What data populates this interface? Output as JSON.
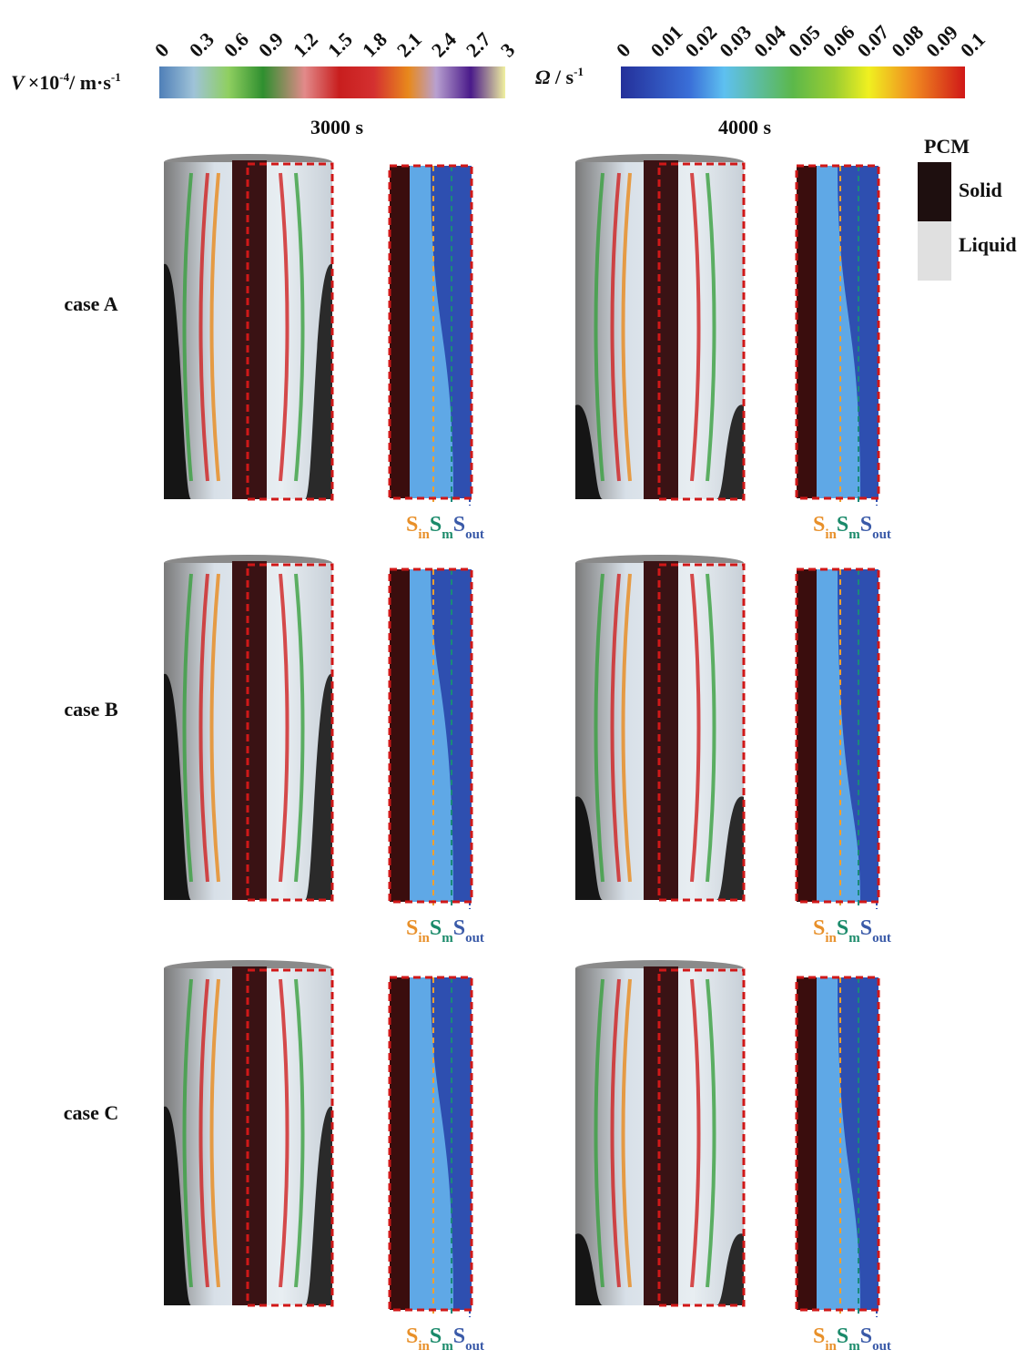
{
  "velocity_bar": {
    "symbol": "V",
    "label": "×10",
    "exp": "-4",
    "unit": "/ m·s",
    "unit_exp": "-1",
    "ticks": [
      "0",
      "0.3",
      "0.6",
      "0.9",
      "1.2",
      "1.5",
      "1.8",
      "2.1",
      "2.4",
      "2.7",
      "3"
    ]
  },
  "vorticity_bar": {
    "symbol": "Ω",
    "unit": " / s",
    "unit_exp": "-1",
    "ticks": [
      "0",
      "0.01",
      "0.02",
      "0.03",
      "0.04",
      "0.05",
      "0.06",
      "0.07",
      "0.08",
      "0.09",
      "0.1"
    ]
  },
  "columns": [
    "3000 s",
    "4000 s"
  ],
  "rows": [
    "case A",
    "case B",
    "case C"
  ],
  "legend": {
    "title": "PCM",
    "items": [
      "Solid",
      "Liquid"
    ]
  },
  "surface_labels": [
    {
      "main": "S",
      "sub": "in"
    },
    {
      "main": "S",
      "sub": "m"
    },
    {
      "main": "S",
      "sub": "out"
    }
  ]
}
